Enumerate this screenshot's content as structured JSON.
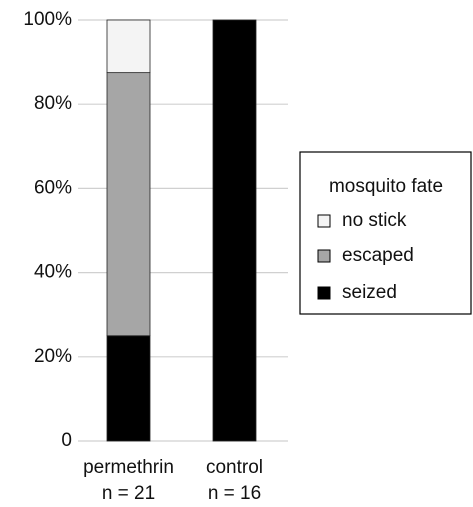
{
  "chart_data": {
    "type": "stacked_bar",
    "categories": [
      "permethrin",
      "control"
    ],
    "category_sublabels": [
      "n = 21",
      "n = 16"
    ],
    "series": [
      {
        "name": "seized",
        "color": "#000000",
        "values": [
          25,
          100
        ]
      },
      {
        "name": "escaped",
        "color": "#a6a6a6",
        "values": [
          62.5,
          0
        ]
      },
      {
        "name": "no stick",
        "color": "#f4f4f4",
        "values": [
          12.5,
          0
        ]
      }
    ],
    "legend_title": "mosquito fate",
    "legend_position": "right",
    "ylim": [
      0,
      100
    ],
    "yticks": [
      0,
      {
        "value": 20,
        "label": "20%"
      },
      {
        "value": 40,
        "label": "40%"
      },
      {
        "value": 60,
        "label": "60%"
      },
      {
        "value": 80,
        "label": "80%"
      },
      {
        "value": 100,
        "label": "100%"
      }
    ],
    "grid": true
  }
}
